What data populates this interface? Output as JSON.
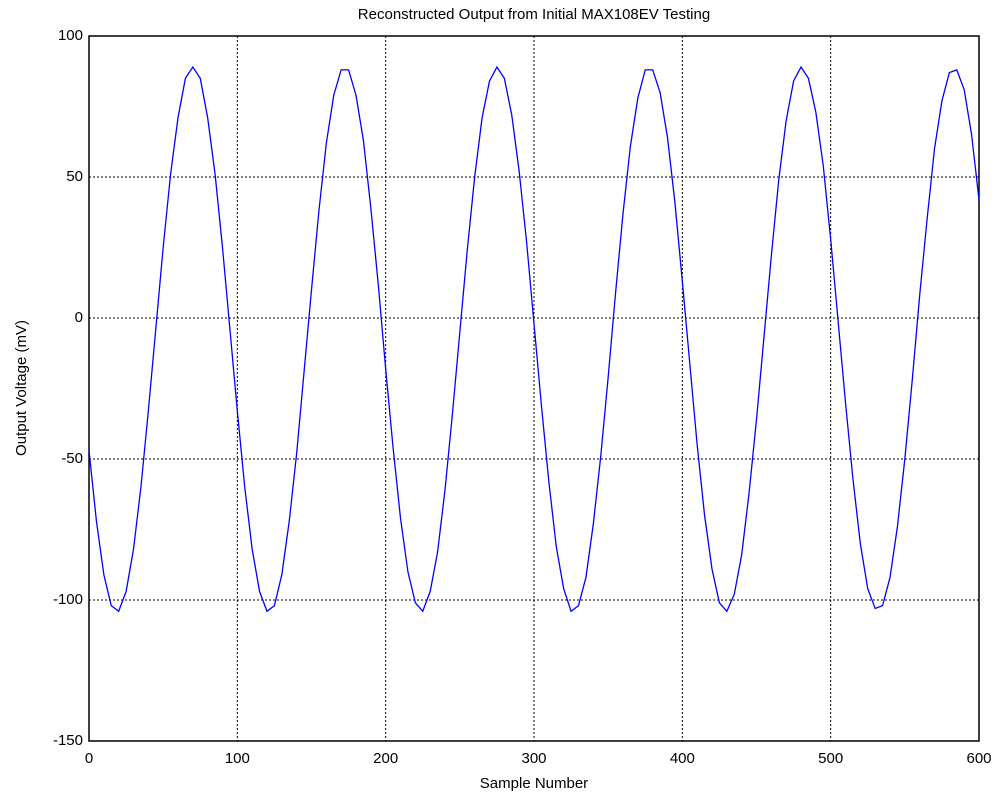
{
  "chart_data": {
    "type": "line",
    "title": "Reconstructed Output from Initial MAX108EV Testing",
    "x_label": "Sample Number",
    "y_label": "Output Voltage (mV)",
    "x": [
      0,
      5,
      10,
      15,
      20,
      25,
      30,
      35,
      40,
      45,
      50,
      55,
      60,
      65,
      70,
      75,
      80,
      85,
      90,
      95,
      100,
      105,
      110,
      115,
      120,
      125,
      130,
      135,
      140,
      145,
      150,
      155,
      160,
      165,
      170,
      175,
      180,
      185,
      190,
      195,
      200,
      205,
      210,
      215,
      220,
      225,
      230,
      235,
      240,
      245,
      250,
      255,
      260,
      265,
      270,
      275,
      280,
      285,
      290,
      295,
      300,
      305,
      310,
      315,
      320,
      325,
      330,
      335,
      340,
      345,
      350,
      355,
      360,
      365,
      370,
      375,
      380,
      385,
      390,
      395,
      400,
      405,
      410,
      415,
      420,
      425,
      430,
      435,
      440,
      445,
      450,
      455,
      460,
      465,
      470,
      475,
      480,
      485,
      490,
      495,
      500,
      505,
      510,
      515,
      520,
      525,
      530,
      535,
      540,
      545,
      550,
      555,
      560,
      565,
      570,
      575,
      580,
      585,
      590,
      595,
      600
    ],
    "series": [
      {
        "name": "Output",
        "color": "#0000ff",
        "values": [
          -47,
          -72,
          -91,
          -102,
          -104,
          -97,
          -82,
          -60,
          -33,
          -4,
          25,
          51,
          71,
          85,
          89,
          85,
          71,
          51,
          25,
          -4,
          -33,
          -60,
          -82,
          -97,
          -104,
          -102,
          -91,
          -72,
          -48,
          -19,
          10,
          38,
          62,
          79,
          88,
          88,
          79,
          63,
          39,
          12,
          -18,
          -46,
          -71,
          -90,
          -101,
          -104,
          -97,
          -83,
          -61,
          -34,
          -5,
          24,
          50,
          71,
          84,
          89,
          85,
          72,
          52,
          27,
          -2,
          -31,
          -58,
          -81,
          -96,
          -104,
          -102,
          -92,
          -73,
          -49,
          -21,
          9,
          37,
          61,
          78,
          88,
          88,
          80,
          64,
          41,
          13,
          -16,
          -45,
          -70,
          -89,
          -101,
          -104,
          -98,
          -84,
          -62,
          -36,
          -7,
          22,
          49,
          70,
          84,
          89,
          85,
          73,
          54,
          28,
          -1,
          -30,
          -57,
          -80,
          -96,
          -103,
          -102,
          -92,
          -74,
          -50,
          -22,
          8,
          35,
          60,
          77,
          87,
          88,
          81,
          65,
          42
        ]
      }
    ],
    "xlim": [
      0,
      600
    ],
    "ylim": [
      -150,
      100
    ],
    "xticks": [
      0,
      100,
      200,
      300,
      400,
      500,
      600
    ],
    "yticks": [
      -150,
      -100,
      -50,
      0,
      50,
      100
    ],
    "grid": true
  }
}
